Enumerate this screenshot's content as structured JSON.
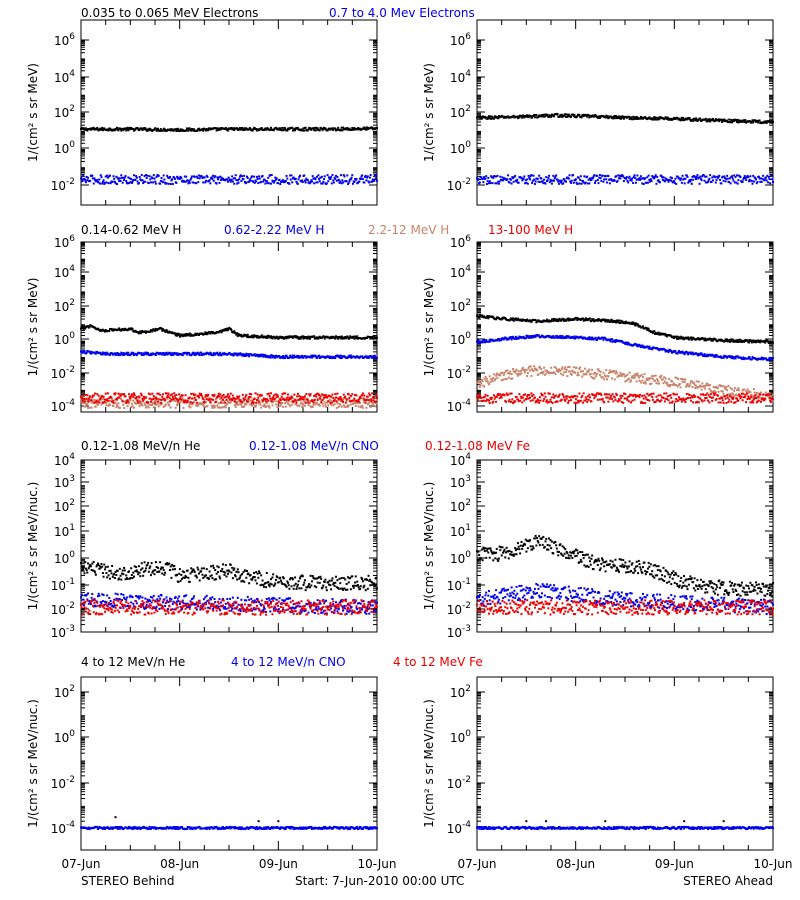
{
  "rows": [
    {
      "label_color_keys": [
        "black",
        "blue"
      ],
      "legend": [
        "0.035 to 0.065 MeV Electrons",
        "0.7 to 4.0 Mev Electrons"
      ],
      "ylabel": "1/(cm² s sr MeV)",
      "ticks": [
        {
          "v": "10",
          "e": "6"
        },
        {
          "v": "10",
          "e": "4"
        },
        {
          "v": "10",
          "e": "2"
        },
        {
          "v": "10",
          "e": "0"
        },
        {
          "v": "10",
          "e": "-2"
        }
      ]
    },
    {
      "label_color_keys": [
        "black",
        "blue",
        "tan",
        "red"
      ],
      "legend": [
        "0.14-0.62 MeV H",
        "0.62-2.22 MeV H",
        "2.2-12 MeV H",
        "13-100 MeV H"
      ],
      "ylabel": "1/(cm² s sr MeV)",
      "ticks": [
        {
          "v": "10",
          "e": "6"
        },
        {
          "v": "10",
          "e": "4"
        },
        {
          "v": "10",
          "e": "2"
        },
        {
          "v": "10",
          "e": "0"
        },
        {
          "v": "10",
          "e": "-2"
        },
        {
          "v": "10",
          "e": "-4"
        }
      ]
    },
    {
      "label_color_keys": [
        "black",
        "blue",
        "red"
      ],
      "legend": [
        "0.12-1.08 MeV/n He",
        "0.12-1.08 MeV/n CNO",
        "0.12-1.08 MeV Fe"
      ],
      "ylabel": "1/(cm² s sr MeV/nuc.)",
      "ticks": [
        {
          "v": "10",
          "e": "4"
        },
        {
          "v": "10",
          "e": "3"
        },
        {
          "v": "10",
          "e": "2"
        },
        {
          "v": "10",
          "e": "1"
        },
        {
          "v": "10",
          "e": "0"
        },
        {
          "v": "10",
          "e": "-1"
        },
        {
          "v": "10",
          "e": "-2"
        },
        {
          "v": "10",
          "e": "-3"
        }
      ]
    },
    {
      "label_color_keys": [
        "black",
        "blue",
        "red"
      ],
      "legend": [
        "4 to 12 MeV/n He",
        "4 to 12 MeV/n CNO",
        "4 to 12 MeV Fe"
      ],
      "ylabel": "1/(cm² s sr MeV/nuc.)",
      "ticks": [
        {
          "v": "10",
          "e": "2"
        },
        {
          "v": "10",
          "e": "0"
        },
        {
          "v": "10",
          "e": "-2"
        },
        {
          "v": "10",
          "e": "-4"
        }
      ]
    }
  ],
  "colors": {
    "black": "#000000",
    "blue": "#0000ee",
    "tan": "#c8846a",
    "red": "#ee0000"
  },
  "x_ticks": [
    "07-Jun",
    "08-Jun",
    "09-Jun",
    "10-Jun"
  ],
  "footer": {
    "left": "STEREO Behind",
    "center": "Start:  7-Jun-2010 00:00 UTC",
    "right": "STEREO Ahead"
  },
  "chart_data": [
    {
      "type": "scatter",
      "panel": "behind-electrons",
      "yscale": "log",
      "ylim": [
        0.005,
        3000000
      ],
      "xlim": [
        0,
        3
      ],
      "series": [
        {
          "name": "0.035 to 0.065 MeV Electrons",
          "points": [
            [
              0,
              12
            ],
            [
              0.5,
              12
            ],
            [
              1,
              11
            ],
            [
              1.5,
              12
            ],
            [
              2,
              12
            ],
            [
              2.5,
              12
            ],
            [
              3,
              13
            ]
          ]
        },
        {
          "name": "0.7 to 4.0 Mev Electrons",
          "points": [
            [
              0,
              0.02
            ],
            [
              1,
              0.02
            ],
            [
              2,
              0.02
            ],
            [
              3,
              0.02
            ]
          ]
        }
      ]
    },
    {
      "type": "scatter",
      "panel": "ahead-electrons",
      "yscale": "log",
      "ylim": [
        0.005,
        3000000
      ],
      "xlim": [
        0,
        3
      ],
      "series": [
        {
          "name": "0.035 to 0.065 MeV Electrons",
          "points": [
            [
              0,
              50
            ],
            [
              0.5,
              60
            ],
            [
              0.8,
              70
            ],
            [
              1.2,
              60
            ],
            [
              1.6,
              50
            ],
            [
              2,
              45
            ],
            [
              2.5,
              35
            ],
            [
              3,
              30
            ]
          ]
        },
        {
          "name": "0.7 to 4.0 Mev Electrons",
          "points": [
            [
              0,
              0.02
            ],
            [
              1,
              0.02
            ],
            [
              2,
              0.02
            ],
            [
              3,
              0.02
            ]
          ]
        }
      ]
    },
    {
      "type": "scatter",
      "panel": "behind-protons",
      "yscale": "log",
      "ylim": [
        5e-05,
        1000000
      ],
      "xlim": [
        0,
        3
      ],
      "series": [
        {
          "name": "0.14-0.62 MeV H",
          "points": [
            [
              0,
              5
            ],
            [
              0.1,
              8
            ],
            [
              0.2,
              4
            ],
            [
              0.5,
              5
            ],
            [
              0.6,
              3
            ],
            [
              0.8,
              5
            ],
            [
              1.0,
              2
            ],
            [
              1.4,
              3
            ],
            [
              1.5,
              5
            ],
            [
              1.6,
              2
            ],
            [
              2,
              1.5
            ],
            [
              2.5,
              1.5
            ],
            [
              3,
              1.5
            ]
          ]
        },
        {
          "name": "0.62-2.22 MeV H",
          "points": [
            [
              0,
              0.2
            ],
            [
              0.3,
              0.15
            ],
            [
              0.8,
              0.15
            ],
            [
              1.5,
              0.15
            ],
            [
              2,
              0.1
            ],
            [
              3,
              0.1
            ]
          ]
        },
        {
          "name": "2.2-12 MeV H",
          "points": [
            [
              0,
              0.00015
            ],
            [
              3,
              0.00015
            ]
          ]
        },
        {
          "name": "13-100 MeV H",
          "points": [
            [
              0,
              0.0003
            ],
            [
              3,
              0.0003
            ]
          ]
        }
      ]
    },
    {
      "type": "scatter",
      "panel": "ahead-protons",
      "yscale": "log",
      "ylim": [
        5e-05,
        1000000
      ],
      "xlim": [
        0,
        3
      ],
      "series": [
        {
          "name": "0.14-0.62 MeV H",
          "points": [
            [
              0,
              30
            ],
            [
              0.3,
              20
            ],
            [
              0.6,
              15
            ],
            [
              1.0,
              20
            ],
            [
              1.4,
              15
            ],
            [
              1.6,
              10
            ],
            [
              1.8,
              3
            ],
            [
              2,
              1.5
            ],
            [
              2.5,
              1
            ],
            [
              3,
              0.8
            ]
          ]
        },
        {
          "name": "0.62-2.22 MeV H",
          "points": [
            [
              0,
              0.8
            ],
            [
              0.3,
              1.3
            ],
            [
              0.6,
              1.8
            ],
            [
              1.0,
              1.5
            ],
            [
              1.3,
              1.2
            ],
            [
              1.7,
              0.4
            ],
            [
              2,
              0.2
            ],
            [
              2.5,
              0.1
            ],
            [
              3,
              0.07
            ]
          ]
        },
        {
          "name": "2.2-12 MeV H",
          "points": [
            [
              0,
              0.002
            ],
            [
              0.3,
              0.008
            ],
            [
              0.6,
              0.015
            ],
            [
              1.0,
              0.012
            ],
            [
              1.4,
              0.007
            ],
            [
              1.8,
              0.004
            ],
            [
              2.2,
              0.002
            ],
            [
              2.6,
              0.0008
            ],
            [
              3,
              0.0004
            ]
          ]
        },
        {
          "name": "13-100 MeV H",
          "points": [
            [
              0,
              0.0003
            ],
            [
              3,
              0.0003
            ]
          ]
        }
      ]
    },
    {
      "type": "scatter",
      "panel": "behind-heavy-low",
      "yscale": "log",
      "ylim": [
        0.0005,
        10000
      ],
      "xlim": [
        0,
        3
      ],
      "series": [
        {
          "name": "0.12-1.08 MeV/n He",
          "points": [
            [
              0,
              0.5
            ],
            [
              0.2,
              0.3
            ],
            [
              0.5,
              0.25
            ],
            [
              0.8,
              0.5
            ],
            [
              1.0,
              0.2
            ],
            [
              1.5,
              0.3
            ],
            [
              2,
              0.1
            ],
            [
              2.5,
              0.1
            ],
            [
              3,
              0.1
            ]
          ]
        },
        {
          "name": "0.12-1.08 MeV/n CNO",
          "points": [
            [
              0,
              0.02
            ],
            [
              3,
              0.01
            ]
          ]
        },
        {
          "name": "0.12-1.08 MeV Fe",
          "points": [
            [
              0,
              0.01
            ],
            [
              3,
              0.01
            ]
          ]
        }
      ]
    },
    {
      "type": "scatter",
      "panel": "ahead-heavy-low",
      "yscale": "log",
      "ylim": [
        0.0005,
        10000
      ],
      "xlim": [
        0,
        3
      ],
      "series": [
        {
          "name": "0.12-1.08 MeV/n He",
          "points": [
            [
              0,
              1.5
            ],
            [
              0.3,
              1.5
            ],
            [
              0.6,
              5
            ],
            [
              0.9,
              2
            ],
            [
              1.2,
              0.6
            ],
            [
              1.5,
              0.5
            ],
            [
              1.8,
              0.3
            ],
            [
              2.1,
              0.1
            ],
            [
              2.5,
              0.06
            ],
            [
              3,
              0.05
            ]
          ]
        },
        {
          "name": "0.12-1.08 MeV/n CNO",
          "points": [
            [
              0,
              0.02
            ],
            [
              0.6,
              0.05
            ],
            [
              1.5,
              0.02
            ],
            [
              3,
              0.01
            ]
          ]
        },
        {
          "name": "0.12-1.08 MeV Fe",
          "points": [
            [
              0,
              0.01
            ],
            [
              3,
              0.01
            ]
          ]
        }
      ]
    },
    {
      "type": "scatter",
      "panel": "behind-heavy-high",
      "yscale": "log",
      "ylim": [
        2e-05,
        1000
      ],
      "xlim": [
        0,
        3
      ],
      "series": [
        {
          "name": "4 to 12 MeV/n He",
          "points": [
            [
              0.35,
              0.0003
            ],
            [
              0.9,
              0.0001
            ],
            [
              1.8,
              0.0002
            ],
            [
              2.0,
              0.0002
            ]
          ]
        },
        {
          "name": "4 to 12 MeV/n CNO",
          "points": [
            [
              0,
              0.0001
            ],
            [
              3,
              0.0001
            ]
          ]
        },
        {
          "name": "4 to 12 MeV Fe",
          "points": []
        }
      ]
    },
    {
      "type": "scatter",
      "panel": "ahead-heavy-high",
      "yscale": "log",
      "ylim": [
        2e-05,
        1000
      ],
      "xlim": [
        0,
        3
      ],
      "series": [
        {
          "name": "4 to 12 MeV/n He",
          "points": [
            [
              0.5,
              0.0002
            ],
            [
              0.7,
              0.0002
            ],
            [
              1.3,
              0.0002
            ],
            [
              2.1,
              0.0002
            ],
            [
              2.5,
              0.0002
            ]
          ]
        },
        {
          "name": "4 to 12 MeV/n CNO",
          "points": [
            [
              0,
              0.0001
            ],
            [
              3,
              0.0001
            ]
          ]
        },
        {
          "name": "4 to 12 MeV Fe",
          "points": []
        }
      ]
    }
  ]
}
